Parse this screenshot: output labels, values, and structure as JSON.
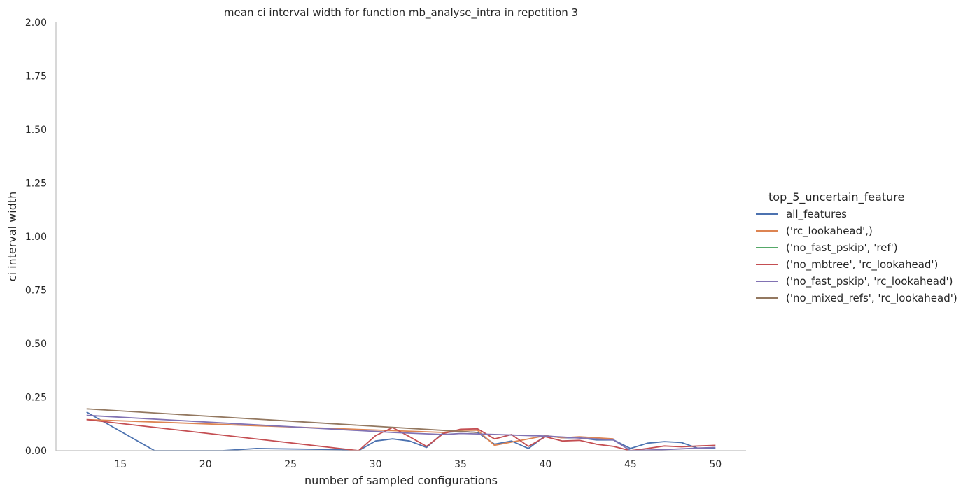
{
  "chart_data": {
    "type": "line",
    "title": "mean ci interval width for function mb_analyse_intra in repetition 3",
    "xlabel": "number of sampled configurations",
    "ylabel": "ci interval width",
    "xlim": [
      11.2,
      51.8
    ],
    "ylim": [
      0,
      2
    ],
    "xticks": [
      15,
      20,
      25,
      30,
      35,
      40,
      45,
      50
    ],
    "yticks": [
      "0.00",
      "0.25",
      "0.50",
      "0.75",
      "1.00",
      "1.25",
      "1.50",
      "1.75",
      "2.00"
    ],
    "grid": false,
    "legend": {
      "title": "top_5_uncertain_feature",
      "placement": "right"
    },
    "series": [
      {
        "name": "all_features",
        "color": "#4c72b0",
        "points": [
          [
            13,
            0.18
          ],
          [
            17,
            0.0
          ],
          [
            21,
            0.0
          ],
          [
            23,
            0.01
          ],
          [
            28,
            0.005
          ],
          [
            29,
            0.0
          ],
          [
            30,
            0.045
          ],
          [
            31,
            0.055
          ],
          [
            32,
            0.045
          ],
          [
            33,
            0.015
          ],
          [
            34,
            0.085
          ],
          [
            35,
            0.09
          ],
          [
            36,
            0.085
          ],
          [
            37,
            0.03
          ],
          [
            38,
            0.045
          ],
          [
            39,
            0.01
          ],
          [
            40,
            0.07
          ],
          [
            41,
            0.06
          ],
          [
            42,
            0.06
          ],
          [
            43,
            0.05
          ],
          [
            44,
            0.05
          ],
          [
            45,
            0.01
          ],
          [
            46,
            0.035
          ],
          [
            47,
            0.042
          ],
          [
            48,
            0.038
          ],
          [
            49,
            0.01
          ],
          [
            50,
            0.01
          ]
        ]
      },
      {
        "name": "('rc_lookahead',)",
        "color": "#dd8452",
        "points": [
          [
            13,
            0.145
          ],
          [
            34,
            0.085
          ],
          [
            35,
            0.095
          ],
          [
            36,
            0.095
          ],
          [
            37,
            0.025
          ],
          [
            38,
            0.04
          ],
          [
            39,
            0.055
          ],
          [
            40,
            0.07
          ],
          [
            41,
            0.06
          ],
          [
            42,
            0.065
          ],
          [
            43,
            0.06
          ],
          [
            44,
            0.055
          ]
        ]
      },
      {
        "name": "('no_fast_pskip', 'ref')",
        "color": "#55a868",
        "points": []
      },
      {
        "name": "('no_mbtree', 'rc_lookahead')",
        "color": "#c44e52",
        "points": [
          [
            13,
            0.145
          ],
          [
            29,
            0.0
          ],
          [
            30,
            0.07
          ],
          [
            31,
            0.108
          ],
          [
            32,
            0.065
          ],
          [
            33,
            0.02
          ],
          [
            34,
            0.08
          ],
          [
            35,
            0.1
          ],
          [
            36,
            0.102
          ],
          [
            37,
            0.055
          ],
          [
            38,
            0.075
          ],
          [
            39,
            0.02
          ],
          [
            40,
            0.065
          ],
          [
            41,
            0.045
          ],
          [
            42,
            0.048
          ],
          [
            43,
            0.03
          ],
          [
            44,
            0.02
          ],
          [
            45,
            0.0
          ],
          [
            46,
            0.01
          ],
          [
            47,
            0.022
          ],
          [
            48,
            0.018
          ],
          [
            49,
            0.022
          ],
          [
            50,
            0.025
          ]
        ]
      },
      {
        "name": "('no_fast_pskip', 'rc_lookahead')",
        "color": "#8172b3",
        "points": [
          [
            13,
            0.165
          ],
          [
            31,
            0.085
          ],
          [
            34,
            0.075
          ],
          [
            35,
            0.08
          ],
          [
            36,
            0.078
          ],
          [
            40,
            0.068
          ],
          [
            44,
            0.05
          ],
          [
            45,
            0.0
          ],
          [
            47,
            0.005
          ],
          [
            49,
            0.012
          ],
          [
            50,
            0.015
          ]
        ]
      },
      {
        "name": "('no_mixed_refs', 'rc_lookahead')",
        "color": "#937860",
        "points": [
          [
            13,
            0.195
          ],
          [
            36,
            0.085
          ]
        ]
      }
    ]
  }
}
